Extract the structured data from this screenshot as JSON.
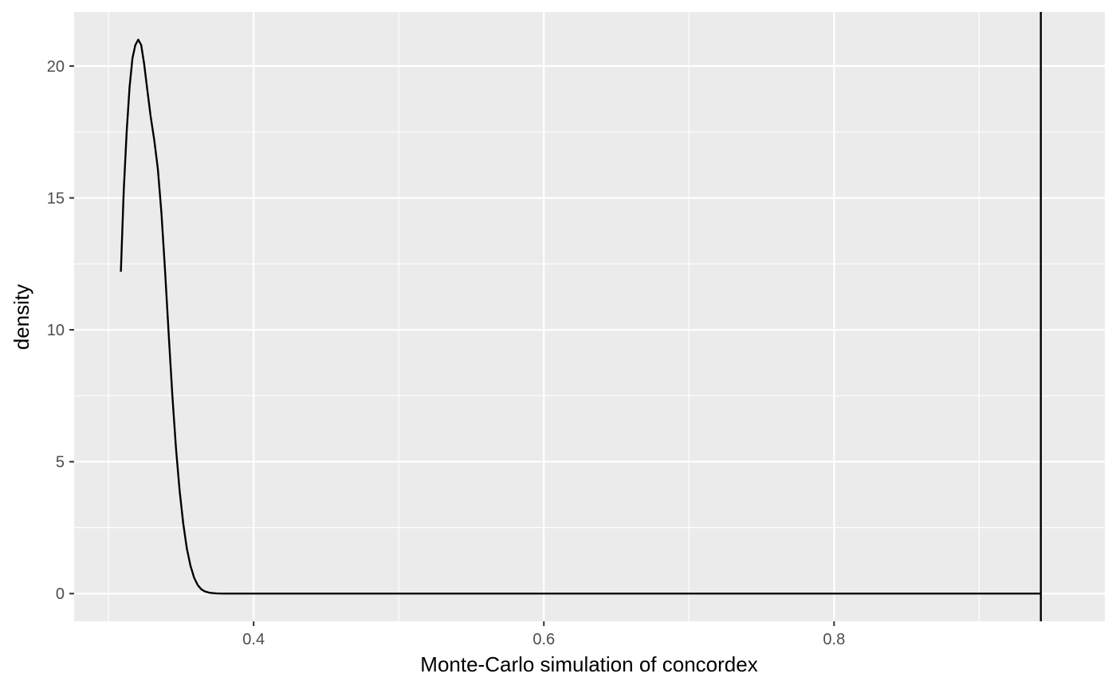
{
  "chart_data": {
    "type": "line",
    "title": "",
    "xlabel": "Monte-Carlo simulation of concordex",
    "ylabel": "density",
    "xlim": [
      0.2763,
      0.9866
    ],
    "ylim": [
      -1.05,
      22.05
    ],
    "x_ticks": [
      0.4,
      0.6,
      0.8
    ],
    "x_tick_labels": [
      "0.4",
      "0.6",
      "0.8"
    ],
    "x_minor_ticks": [
      0.3,
      0.5,
      0.7,
      0.9
    ],
    "y_ticks": [
      0,
      5,
      10,
      15,
      20
    ],
    "y_tick_labels": [
      "0",
      "5",
      "10",
      "15",
      "20"
    ],
    "y_minor_ticks": [
      2.5,
      7.5,
      12.5,
      17.5
    ],
    "grid": true,
    "legend": "none",
    "panel_background": "#ebebeb",
    "grid_color": "#ffffff",
    "line_color": "#000000",
    "series": [
      {
        "x": [
          0.3085,
          0.3105,
          0.3125,
          0.3145,
          0.3165,
          0.3185,
          0.3205,
          0.3225,
          0.3245,
          0.3265,
          0.329,
          0.3315,
          0.334,
          0.3365,
          0.339,
          0.3415,
          0.344,
          0.3465,
          0.349,
          0.3515,
          0.354,
          0.3565,
          0.359,
          0.3615,
          0.364,
          0.3665,
          0.369,
          0.3715,
          0.374,
          0.3765,
          0.379,
          0.3815,
          0.384,
          0.3865,
          0.389,
          0.392,
          0.396,
          0.4,
          0.45,
          0.5,
          0.55,
          0.6,
          0.65,
          0.7,
          0.75,
          0.8,
          0.85,
          0.9,
          0.9425
        ],
        "y": [
          12.2,
          15.3,
          17.5,
          19.2,
          20.3,
          20.8,
          21.0,
          20.8,
          20.1,
          19.2,
          18.1,
          17.2,
          16.1,
          14.4,
          12.2,
          9.8,
          7.5,
          5.5,
          3.9,
          2.65,
          1.7,
          1.05,
          0.6,
          0.32,
          0.16,
          0.08,
          0.04,
          0.02,
          0.01,
          0.004,
          0.002,
          0.001,
          0,
          0,
          0,
          0,
          0,
          0,
          0,
          0,
          0,
          0,
          0,
          0,
          0,
          0,
          0,
          0,
          0
        ]
      }
    ],
    "vline": {
      "x": 0.9425
    }
  }
}
